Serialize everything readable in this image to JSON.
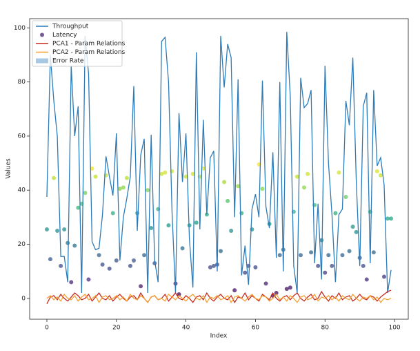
{
  "chart_data": {
    "type": "line",
    "xlabel": "Index",
    "ylabel": "Values",
    "x": [
      0,
      1,
      2,
      3,
      4,
      5,
      6,
      7,
      8,
      9,
      10,
      11,
      12,
      13,
      14,
      15,
      16,
      17,
      18,
      19,
      20,
      21,
      22,
      23,
      24,
      25,
      26,
      27,
      28,
      29,
      30,
      31,
      32,
      33,
      34,
      35,
      36,
      37,
      38,
      39,
      40,
      41,
      42,
      43,
      44,
      45,
      46,
      47,
      48,
      49,
      50,
      51,
      52,
      53,
      54,
      55,
      56,
      57,
      58,
      59,
      60,
      61,
      62,
      63,
      64,
      65,
      66,
      67,
      68,
      69,
      70,
      71,
      72,
      73,
      74,
      75,
      76,
      77,
      78,
      79,
      80,
      81,
      82,
      83,
      84,
      85,
      86,
      87,
      88,
      89,
      90,
      91,
      92,
      93,
      94,
      95,
      96,
      97,
      98,
      99
    ],
    "series": [
      {
        "name": "Throughput",
        "kind": "line",
        "color": "#2b7bb9",
        "values": [
          37.5,
          90,
          73,
          60,
          15.5,
          15.5,
          6,
          86,
          60,
          71,
          2,
          97,
          83,
          21,
          18,
          18.5,
          31,
          52.5,
          45,
          38,
          61,
          14,
          30,
          37,
          45,
          78.5,
          25,
          53,
          59,
          2,
          60.5,
          14,
          6,
          95,
          96.5,
          80,
          32,
          2,
          68.5,
          43,
          61,
          22,
          4,
          91,
          25.5,
          66,
          31,
          52,
          54.5,
          10,
          97,
          78,
          94,
          89,
          30,
          81,
          8.5,
          19.5,
          5,
          33,
          38.5,
          30,
          80.5,
          34,
          26,
          54,
          15,
          80,
          10,
          98.5,
          75,
          12,
          2,
          81.5,
          70.5,
          72,
          77,
          13,
          35,
          7,
          86,
          50,
          31,
          6,
          31,
          33,
          73,
          64,
          89,
          43,
          12,
          71,
          76,
          13,
          77,
          49,
          52,
          42,
          2,
          10.5
        ]
      },
      {
        "name": "Latency",
        "kind": "scatter",
        "cmap": "viridis",
        "values": [
          25.5,
          14.5,
          44.5,
          25,
          12,
          25.5,
          20.5,
          6,
          19.5,
          33.5,
          35,
          39,
          7,
          48,
          45,
          16,
          12.5,
          45.5,
          11,
          31.5,
          14,
          40.5,
          41,
          44.5,
          12,
          14,
          31.5,
          4.5,
          16,
          40,
          26,
          13,
          33,
          46,
          46.5,
          27,
          47,
          5.5,
          1.5,
          18.5,
          45,
          27,
          46,
          28,
          45,
          48,
          31,
          11.5,
          12,
          12.5,
          17.5,
          43,
          36,
          25,
          3,
          41.5,
          31.5,
          9.5,
          12,
          25.5,
          11.5,
          49.5,
          40.5,
          5.5,
          27.5,
          1,
          2,
          16,
          18,
          3.5,
          4,
          32,
          45,
          16,
          41,
          46,
          17,
          34.5,
          12,
          21.5,
          9.5,
          16,
          12,
          31.5,
          46.5,
          16,
          37.5,
          17.5,
          26.5,
          24.5,
          15,
          12,
          7,
          32,
          17,
          47,
          45.5,
          8,
          29.5,
          29.5
        ]
      },
      {
        "name": "PCA1 - Param Relations",
        "kind": "line",
        "color": "#c8281e",
        "values": [
          -2,
          0.5,
          1,
          -0.5,
          1.5,
          0,
          -1,
          0.5,
          2,
          1,
          -0.5,
          0,
          1.5,
          -1,
          0.5,
          2,
          0,
          -0.5,
          1,
          -1,
          0.5,
          1.5,
          0,
          -1,
          0.5,
          1,
          -0.5,
          2,
          0,
          -1.5,
          0.5,
          1,
          -0.5,
          0,
          1.5,
          -1,
          0.5,
          2,
          0,
          -0.5,
          1,
          0,
          -1.5,
          0.5,
          1,
          -0.5,
          2,
          0,
          -1,
          0.5,
          1.5,
          0,
          -0.5,
          1,
          -1.5,
          0.5,
          0,
          2,
          -0.5,
          1,
          0,
          -1,
          1.5,
          0.5,
          -0.5,
          2,
          0,
          -1,
          0.5,
          1,
          -0.5,
          1,
          2,
          0,
          -1,
          0.5,
          1.5,
          -0.5,
          0,
          2.5,
          0.5,
          -1,
          1,
          0,
          2,
          -0.5,
          0.5,
          1,
          -1,
          0,
          1.5,
          0,
          -0.5,
          1,
          0.5,
          -1,
          0.5,
          1.5,
          2.5,
          3
        ]
      },
      {
        "name": "PCA2 - Param Relations",
        "kind": "line",
        "color": "#f5a030",
        "values": [
          0,
          1,
          -0.5,
          0.5,
          -1,
          1.5,
          0,
          -0.5,
          1,
          -1,
          0.5,
          1.5,
          -0.5,
          0,
          1,
          -1.5,
          0.5,
          1,
          -0.5,
          0,
          1,
          -0.5,
          0.5,
          -1,
          1.5,
          0,
          -0.5,
          1,
          0,
          -1.5,
          0.5,
          1,
          -0.5,
          0,
          -1,
          1.5,
          0.5,
          -0.5,
          1,
          0,
          -1,
          0.5,
          1.5,
          0,
          -0.5,
          1,
          -1.5,
          0.5,
          0,
          1,
          -0.5,
          0,
          1,
          -1.5,
          0.5,
          1,
          0,
          -1,
          0.5,
          1.5,
          0,
          -0.5,
          1,
          0.5,
          -1,
          0,
          1.5,
          -0.5,
          0.5,
          -1,
          1,
          0,
          -1.5,
          0.5,
          1,
          -0.5,
          0,
          1.5,
          -1,
          0.5,
          0,
          1,
          -0.5,
          0.5,
          -1,
          1,
          0,
          -0.5,
          1.5,
          0,
          -1,
          0.5,
          0,
          1,
          -0.5,
          0.5,
          -1.5,
          0,
          -0.5,
          0
        ]
      },
      {
        "name": "Error Rate",
        "kind": "patch",
        "color": "#a8c8e4"
      }
    ],
    "xlim": [
      -4.95,
      103.95
    ],
    "xticks": [
      0,
      20,
      40,
      60,
      80,
      100
    ],
    "ylim": [
      -7.7,
      103.4
    ],
    "yticks": [
      0,
      20,
      40,
      60,
      80,
      100
    ],
    "legend": "upper left"
  }
}
